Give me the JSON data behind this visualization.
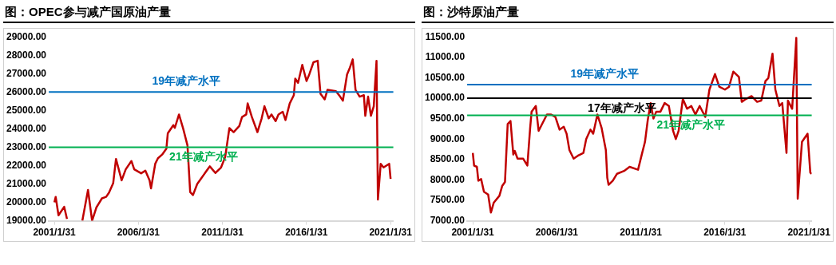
{
  "chart_data": [
    {
      "type": "line",
      "title": "图：OPEC参与减产国原油产量",
      "xlim": [
        "2000-10",
        "2021-04"
      ],
      "ylim": [
        19000,
        29000
      ],
      "xticks": [
        {
          "value": "2001-01-31",
          "label": "2001/1/31"
        },
        {
          "value": "2006-01-31",
          "label": "2006/1/31"
        },
        {
          "value": "2011-01-31",
          "label": "2011/1/31"
        },
        {
          "value": "2016-01-31",
          "label": "2016/1/31"
        },
        {
          "value": "2021-01-31",
          "label": "2021/1/31"
        }
      ],
      "yticks": [
        {
          "value": 19000,
          "label": "19000.00"
        },
        {
          "value": 20000,
          "label": "20000.00"
        },
        {
          "value": 21000,
          "label": "21000.00"
        },
        {
          "value": 22000,
          "label": "22000.00"
        },
        {
          "value": 23000,
          "label": "23000.00"
        },
        {
          "value": 24000,
          "label": "24000.00"
        },
        {
          "value": 25000,
          "label": "25000.00"
        },
        {
          "value": 26000,
          "label": "26000.00"
        },
        {
          "value": 27000,
          "label": "27000.00"
        },
        {
          "value": 28000,
          "label": "28000.00"
        },
        {
          "value": 29000,
          "label": "29000.00"
        }
      ],
      "grid": false,
      "legend": false,
      "series": [
        {
          "color": "#c00000",
          "x": [
            "2001-02",
            "2001-03",
            "2001-05",
            "2001-09",
            "2001-11",
            "2002-06",
            "2002-10",
            "2003-02",
            "2003-05",
            "2003-08",
            "2003-12",
            "2004-03",
            "2004-05",
            "2004-08",
            "2004-10",
            "2005-02",
            "2005-05",
            "2005-09",
            "2005-11",
            "2006-04",
            "2006-07",
            "2006-10",
            "2006-11",
            "2007-02",
            "2007-04",
            "2007-07",
            "2007-10",
            "2007-11",
            "2008-03",
            "2008-04",
            "2008-07",
            "2008-10",
            "2009-01",
            "2009-03",
            "2009-05",
            "2009-08",
            "2010-02",
            "2010-05",
            "2010-09",
            "2011-01",
            "2011-04",
            "2011-07",
            "2011-10",
            "2012-02",
            "2012-04",
            "2012-07",
            "2012-08",
            "2012-11",
            "2013-03",
            "2013-06",
            "2013-08",
            "2013-11",
            "2014-01",
            "2014-04",
            "2014-06",
            "2014-09",
            "2014-11",
            "2015-02",
            "2015-05",
            "2015-06",
            "2015-08",
            "2015-11",
            "2016-02",
            "2016-04",
            "2016-07",
            "2016-10",
            "2016-12",
            "2017-03",
            "2017-05",
            "2017-11",
            "2018-02",
            "2018-04",
            "2018-07",
            "2018-09",
            "2018-11",
            "2019-01",
            "2019-04",
            "2019-07",
            "2019-08",
            "2019-10",
            "2019-12",
            "2020-02",
            "2020-04",
            "2020-05",
            "2020-07",
            "2020-09",
            "2021-01",
            "2021-02"
          ],
          "values": [
            20000,
            20300,
            19300,
            19760,
            19100,
            null,
            19000,
            20680,
            19000,
            19720,
            20220,
            20300,
            20520,
            21040,
            22360,
            21200,
            21800,
            22250,
            21800,
            21580,
            21730,
            21200,
            20760,
            22100,
            22400,
            22600,
            22920,
            23760,
            24200,
            24050,
            24780,
            24000,
            23100,
            20560,
            20400,
            21000,
            21650,
            21960,
            21600,
            21900,
            22470,
            24040,
            23820,
            24150,
            24640,
            24780,
            25380,
            24640,
            23820,
            24570,
            25230,
            24570,
            24780,
            24420,
            24780,
            24930,
            24480,
            25380,
            25830,
            26730,
            26500,
            27480,
            26600,
            26960,
            27620,
            27700,
            25900,
            25600,
            26120,
            26050,
            25750,
            25530,
            26960,
            27330,
            27780,
            26120,
            25750,
            25830,
            24710,
            25750,
            24710,
            25230,
            27700,
            20150,
            22100,
            21900,
            22100,
            21280
          ]
        }
      ],
      "ref_lines": [
        {
          "axis": "y",
          "value": 26000,
          "label": "19年减产水平",
          "color": "#0070c0"
        },
        {
          "axis": "y",
          "value": 23000,
          "label": "21年减产水平",
          "color": "#00b050"
        }
      ]
    },
    {
      "type": "line",
      "title": "图：沙特原油产量",
      "xlim": [
        "2000-10",
        "2021-04"
      ],
      "ylim": [
        7000,
        11500
      ],
      "xticks": [
        {
          "value": "2001-01-31",
          "label": "2001/1/31"
        },
        {
          "value": "2006-01-31",
          "label": "2006/1/31"
        },
        {
          "value": "2011-01-31",
          "label": "2011/1/31"
        },
        {
          "value": "2016-01-31",
          "label": "2016/1/31"
        },
        {
          "value": "2021-01-31",
          "label": "2021/1/31"
        }
      ],
      "yticks": [
        {
          "value": 7000,
          "label": "7000.00"
        },
        {
          "value": 7500,
          "label": "7500.00"
        },
        {
          "value": 8000,
          "label": "8000.00"
        },
        {
          "value": 8500,
          "label": "8500.00"
        },
        {
          "value": 9000,
          "label": "9000.00"
        },
        {
          "value": 9500,
          "label": "9500.00"
        },
        {
          "value": 10000,
          "label": "10000.00"
        },
        {
          "value": 10500,
          "label": "10500.00"
        },
        {
          "value": 11000,
          "label": "11000.00"
        },
        {
          "value": 11500,
          "label": "11500.00"
        }
      ],
      "grid": false,
      "legend": false,
      "series": [
        {
          "color": "#c00000",
          "x": [
            "2001-02",
            "2001-03",
            "2001-05",
            "2001-06",
            "2001-08",
            "2001-10",
            "2002-01",
            "2002-03",
            "2002-05",
            "2002-09",
            "2002-11",
            "2003-01",
            "2003-03",
            "2003-05",
            "2003-07",
            "2003-08",
            "2003-10",
            "2004-02",
            "2004-05",
            "2004-07",
            "2004-08",
            "2004-11",
            "2005-01",
            "2005-04",
            "2005-07",
            "2005-10",
            "2006-01",
            "2006-04",
            "2006-07",
            "2006-09",
            "2006-11",
            "2007-02",
            "2007-05",
            "2007-09",
            "2007-11",
            "2008-02",
            "2008-04",
            "2008-07",
            "2008-10",
            "2009-01",
            "2009-02",
            "2009-03",
            "2009-06",
            "2009-09",
            "2010-02",
            "2010-06",
            "2010-12",
            "2011-03",
            "2011-05",
            "2011-07",
            "2011-09",
            "2011-11",
            "2012-01",
            "2012-04",
            "2012-07",
            "2012-10",
            "2013-01",
            "2013-03",
            "2013-05",
            "2013-08",
            "2013-11",
            "2014-02",
            "2014-05",
            "2014-08",
            "2014-12",
            "2015-03",
            "2015-07",
            "2015-10",
            "2016-02",
            "2016-05",
            "2016-08",
            "2016-12",
            "2017-02",
            "2017-05",
            "2017-09",
            "2018-01",
            "2018-04",
            "2018-07",
            "2018-09",
            "2018-12",
            "2019-02",
            "2019-05",
            "2019-07",
            "2019-10",
            "2019-11",
            "2020-02",
            "2020-05",
            "2020-06",
            "2020-09",
            "2021-01",
            "2021-03",
            "2021-04"
          ],
          "values": [
            8660,
            8350,
            8320,
            7980,
            8020,
            7710,
            7640,
            7200,
            7440,
            7610,
            7850,
            7950,
            9370,
            9440,
            8620,
            8710,
            8520,
            8520,
            8350,
            9270,
            9670,
            9810,
            9200,
            9400,
            9600,
            9600,
            9540,
            9230,
            9300,
            9130,
            8730,
            8520,
            8590,
            8660,
            9000,
            9230,
            9130,
            9600,
            9270,
            8730,
            8050,
            7880,
            7980,
            8150,
            8220,
            8320,
            8250,
            8660,
            8930,
            9470,
            9880,
            9500,
            9670,
            9670,
            9880,
            9810,
            9200,
            9000,
            9200,
            9980,
            9740,
            9810,
            9600,
            9810,
            9540,
            10210,
            10590,
            10280,
            10210,
            10280,
            10650,
            10520,
            9910,
            9980,
            10050,
            9910,
            9940,
            10420,
            10490,
            11090,
            10210,
            9810,
            9880,
            8660,
            9940,
            9740,
            11480,
            7540,
            8930,
            9130,
            8180,
            8150
          ]
        }
      ],
      "ref_lines": [
        {
          "axis": "y",
          "value": 10330,
          "label": "19年减产水平",
          "color": "#0070c0"
        },
        {
          "axis": "y",
          "value": 10000,
          "label": "17年减产水平",
          "color": "#000000"
        },
        {
          "axis": "y",
          "value": 9580,
          "label": "21年减产水平",
          "color": "#00b050"
        }
      ]
    }
  ]
}
